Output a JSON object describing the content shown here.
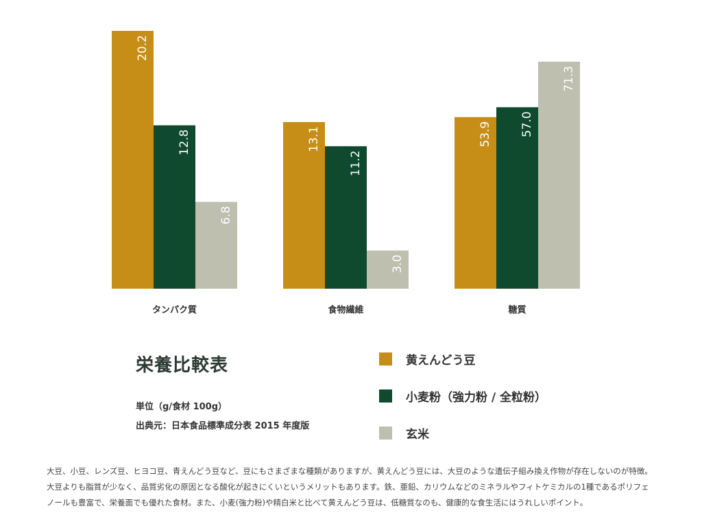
{
  "chart_data": {
    "type": "bar",
    "title": "栄養比較表",
    "categories": [
      "タンパク質",
      "食物繊維",
      "糖質"
    ],
    "series": [
      {
        "name": "黄えんどう豆",
        "values": [
          20.2,
          13.1,
          53.9
        ],
        "color": "#c68e17",
        "value_labels": [
          "20.2",
          "13.1",
          "53.9"
        ]
      },
      {
        "name": "小麦粉（強力粉 / 全粒粉）",
        "values": [
          12.8,
          11.2,
          57.0
        ],
        "color": "#0f4a2e",
        "value_labels": [
          "12.8",
          "11.2",
          "57.0"
        ]
      },
      {
        "name": "玄米",
        "values": [
          6.8,
          3.0,
          71.3
        ],
        "color": "#bebfaf",
        "value_labels": [
          "6.8",
          "3.0",
          "71.3"
        ]
      }
    ],
    "unit_note": "単位（g/食材 100g）",
    "source_note": "出典元：日本食品標準成分表 2015 年度版"
  },
  "description": "大豆、小豆、レンズ豆、ヒヨコ豆、青えんどう豆など、豆にもさまざまな種類がありますが、黄えんどう豆には、大豆のような遺伝子組み換え作物が存在しないのが特徴。大豆よりも脂質が少なく、品質劣化の原因となる酸化が起きにくいというメリットもあります。鉄、亜鉛、カリウムなどのミネラルやフィトケミカルの1種であるポリフェノールも豊富で、栄養面でも優れた食材。また、小麦(強力粉)や精白米と比べて黄えんどう豆は、低糖質なのも、健康的な食生活にはうれしいポイント。"
}
